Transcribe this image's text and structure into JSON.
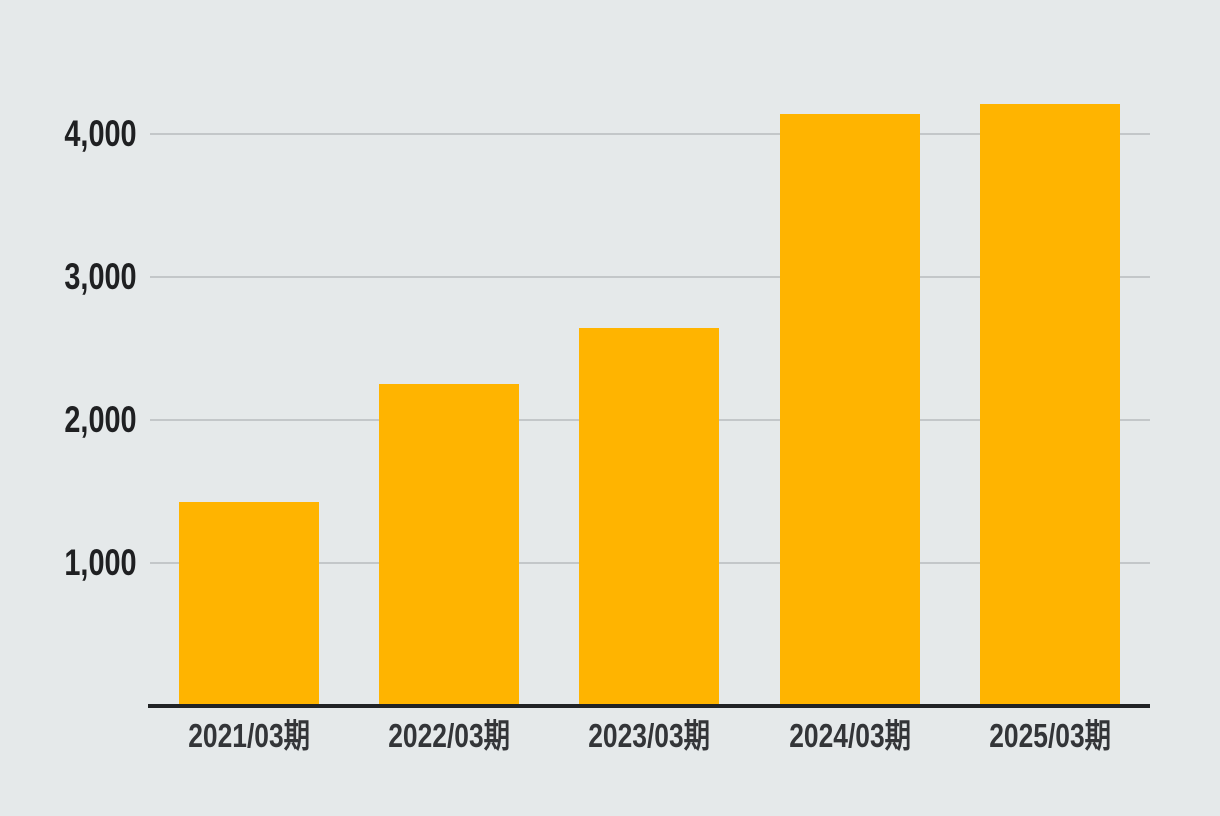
{
  "chart_data": {
    "type": "bar",
    "categories": [
      "2021/03期",
      "2022/03期",
      "2023/03期",
      "2024/03期",
      "2025/03期"
    ],
    "values": [
      1430,
      2250,
      2640,
      4140,
      4210
    ],
    "title": "",
    "xlabel": "",
    "ylabel": "",
    "ylim": [
      0,
      4400
    ],
    "yticks": [
      1000,
      2000,
      3000,
      4000
    ],
    "ytick_labels": [
      "1,000",
      "2,000",
      "3,000",
      "4,000"
    ],
    "grid": true,
    "legend": false,
    "colors": {
      "bar": "#FFB400",
      "background": "#E5E9EA",
      "gridline": "#C3C7C9",
      "axis_line": "#212325",
      "y_tick_text": "#1F2022",
      "x_label_text": "#333538"
    }
  }
}
